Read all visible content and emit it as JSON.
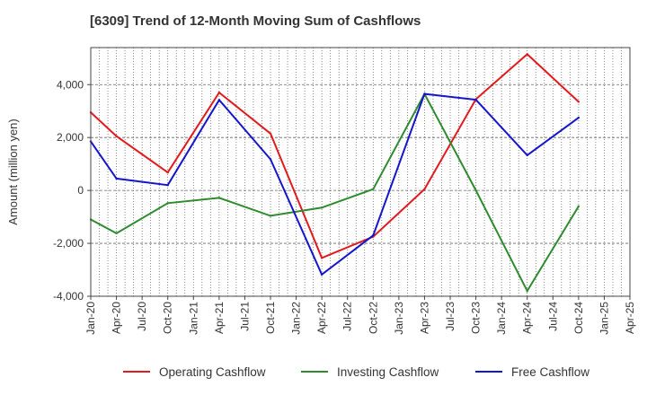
{
  "chart_data": {
    "type": "line",
    "title": "[6309]  Trend of 12-Month Moving Sum of Cashflows",
    "xlabel": "",
    "ylabel": "Amount (million yen)",
    "ylim": [
      -4000,
      5400
    ],
    "yticks": [
      -4000,
      -2000,
      0,
      2000,
      4000
    ],
    "ytick_labels": [
      "-4,000",
      "-2,000",
      "0",
      "2,000",
      "4,000"
    ],
    "categories": [
      "Jan-20",
      "Apr-20",
      "Jul-20",
      "Oct-20",
      "Jan-21",
      "Apr-21",
      "Jul-21",
      "Oct-21",
      "Jan-22",
      "Apr-22",
      "Jul-22",
      "Oct-22",
      "Jan-23",
      "Apr-23",
      "Jul-23",
      "Oct-23",
      "Jan-24",
      "Apr-24",
      "Jul-24",
      "Oct-24",
      "Jan-25",
      "Apr-25"
    ],
    "grid": true,
    "legend_position": "bottom",
    "series": [
      {
        "name": "Operating Cashflow",
        "color": "#e31a1c",
        "values": [
          2950,
          2050,
          null,
          680,
          null,
          3700,
          null,
          2150,
          null,
          -2550,
          null,
          -1750,
          null,
          50,
          null,
          3450,
          null,
          5150,
          null,
          3350,
          null,
          null
        ]
      },
      {
        "name": "Investing Cashflow",
        "color": "#2e8b2e",
        "values": [
          -1100,
          -1620,
          null,
          -480,
          null,
          -280,
          null,
          -960,
          null,
          -650,
          null,
          50,
          null,
          3650,
          null,
          0,
          null,
          -3800,
          null,
          -600,
          null,
          null
        ]
      },
      {
        "name": "Free Cashflow",
        "color": "#1515cc",
        "values": [
          1850,
          450,
          null,
          200,
          null,
          3420,
          null,
          1180,
          null,
          -3180,
          null,
          -1700,
          null,
          3650,
          null,
          3430,
          null,
          1330,
          null,
          2750,
          null,
          null
        ]
      }
    ]
  }
}
